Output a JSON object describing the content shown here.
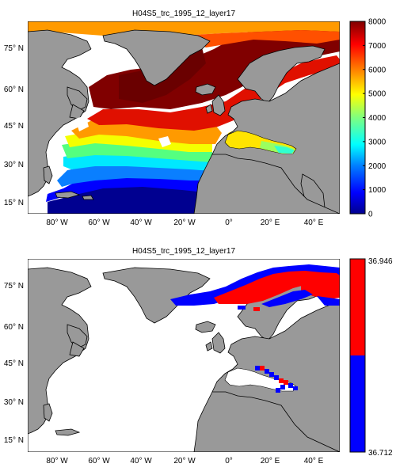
{
  "panels": [
    {
      "title": "H04S5_trc_1995_12_layer17",
      "colorbar": {
        "type": "continuous",
        "ticks": [
          "8000",
          "7000",
          "6000",
          "5000",
          "4000",
          "3000",
          "2000",
          "1000",
          "0"
        ],
        "tick_values": [
          8000,
          7000,
          6000,
          5000,
          4000,
          3000,
          2000,
          1000,
          0
        ],
        "range": [
          0,
          8000
        ],
        "colormap": "jet"
      },
      "y_ticks": [
        "75° N",
        "60° N",
        "45° N",
        "30° N",
        "15° N"
      ],
      "y_tick_values": [
        75,
        60,
        45,
        30,
        15
      ],
      "x_ticks": [
        "80° W",
        "60° W",
        "40° W",
        "20° W",
        "0°",
        "20° E",
        "40° E"
      ],
      "x_tick_values": [
        -80,
        -60,
        -40,
        -20,
        0,
        20,
        40
      ]
    },
    {
      "title": "H04S5_trc_1995_12_layer17",
      "colorbar": {
        "type": "two-class",
        "ticks": [
          "36.946",
          "36.712"
        ],
        "tick_values": [
          36.946,
          36.712
        ],
        "classes": [
          {
            "color": "#ff0000"
          },
          {
            "color": "#0000ff"
          }
        ]
      },
      "y_ticks": [
        "75° N",
        "60° N",
        "45° N",
        "30° N",
        "15° N"
      ],
      "y_tick_values": [
        75,
        60,
        45,
        30,
        15
      ],
      "x_ticks": [
        "80° W",
        "60° W",
        "40° W",
        "20° W",
        "0°",
        "20° E",
        "40° E"
      ],
      "x_tick_values": [
        -80,
        -60,
        -40,
        -20,
        0,
        20,
        40
      ]
    }
  ],
  "map": {
    "lon_range": [
      -90,
      50
    ],
    "lat_range": [
      10,
      85
    ],
    "land_color": "#999999",
    "ocean_nodata_color": "#ffffff"
  }
}
